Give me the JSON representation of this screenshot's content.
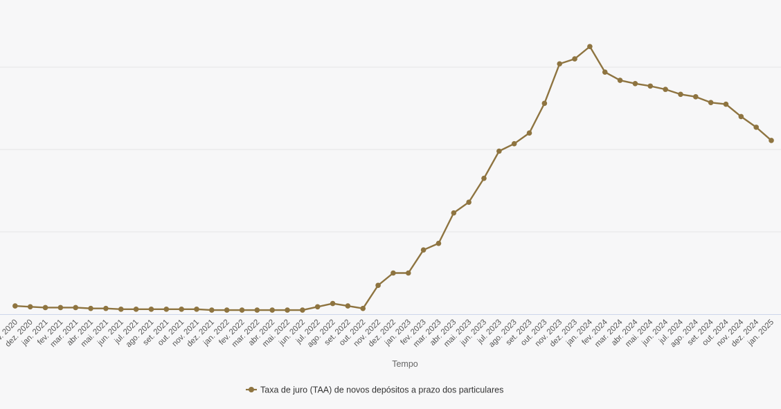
{
  "chart_data": {
    "type": "line",
    "title": "",
    "xlabel": "Tempo",
    "ylabel": "",
    "grid": true,
    "legend_position": "bottom-center",
    "colors": {
      "series": "#8e7440",
      "grid": "#e6e6e6",
      "axis": "#ccd6eb",
      "background": "#f7f7f8"
    },
    "categories": [
      "nov. 2020",
      "dez. 2020",
      "jan. 2021",
      "fev. 2021",
      "mar. 2021",
      "abr. 2021",
      "mai. 2021",
      "jun. 2021",
      "jul. 2021",
      "ago. 2021",
      "set. 2021",
      "out. 2021",
      "nov. 2021",
      "dez. 2021",
      "jan. 2022",
      "fev. 2022",
      "mar. 2022",
      "abr. 2022",
      "mai. 2022",
      "jun. 2022",
      "jul. 2022",
      "ago. 2022",
      "set. 2022",
      "out. 2022",
      "nov. 2022",
      "dez. 2022",
      "jan. 2023",
      "fev. 2023",
      "mar. 2023",
      "abr. 2023",
      "mai. 2023",
      "jun. 2023",
      "jul. 2023",
      "ago. 2023",
      "set. 2023",
      "out. 2023",
      "nov. 2023",
      "dez. 2023",
      "jan. 2024",
      "fev. 2024",
      "mar. 2024",
      "abr. 2024",
      "mai. 2024",
      "jun. 2024",
      "jul. 2024",
      "ago. 2024",
      "set. 2024",
      "out. 2024",
      "nov. 2024",
      "dez. 2024",
      "jan. 2025"
    ],
    "series": [
      {
        "name": "Taxa de juro (TAA) de novos depósitos a prazo dos particulares",
        "values": [
          0.1,
          0.09,
          0.08,
          0.08,
          0.08,
          0.07,
          0.07,
          0.06,
          0.06,
          0.06,
          0.06,
          0.06,
          0.06,
          0.05,
          0.05,
          0.05,
          0.05,
          0.05,
          0.05,
          0.05,
          0.09,
          0.13,
          0.1,
          0.07,
          0.35,
          0.5,
          0.5,
          0.78,
          0.86,
          1.23,
          1.36,
          1.65,
          1.98,
          2.07,
          2.2,
          2.56,
          3.04,
          3.1,
          3.25,
          2.94,
          2.84,
          2.8,
          2.77,
          2.73,
          2.67,
          2.64,
          2.57,
          2.55,
          2.4,
          2.27,
          2.11
        ]
      }
    ],
    "ylim": [
      0,
      4
    ],
    "yticks": [
      0,
      1,
      2,
      3,
      4
    ],
    "xlim_index": [
      -1,
      50.64
    ]
  }
}
